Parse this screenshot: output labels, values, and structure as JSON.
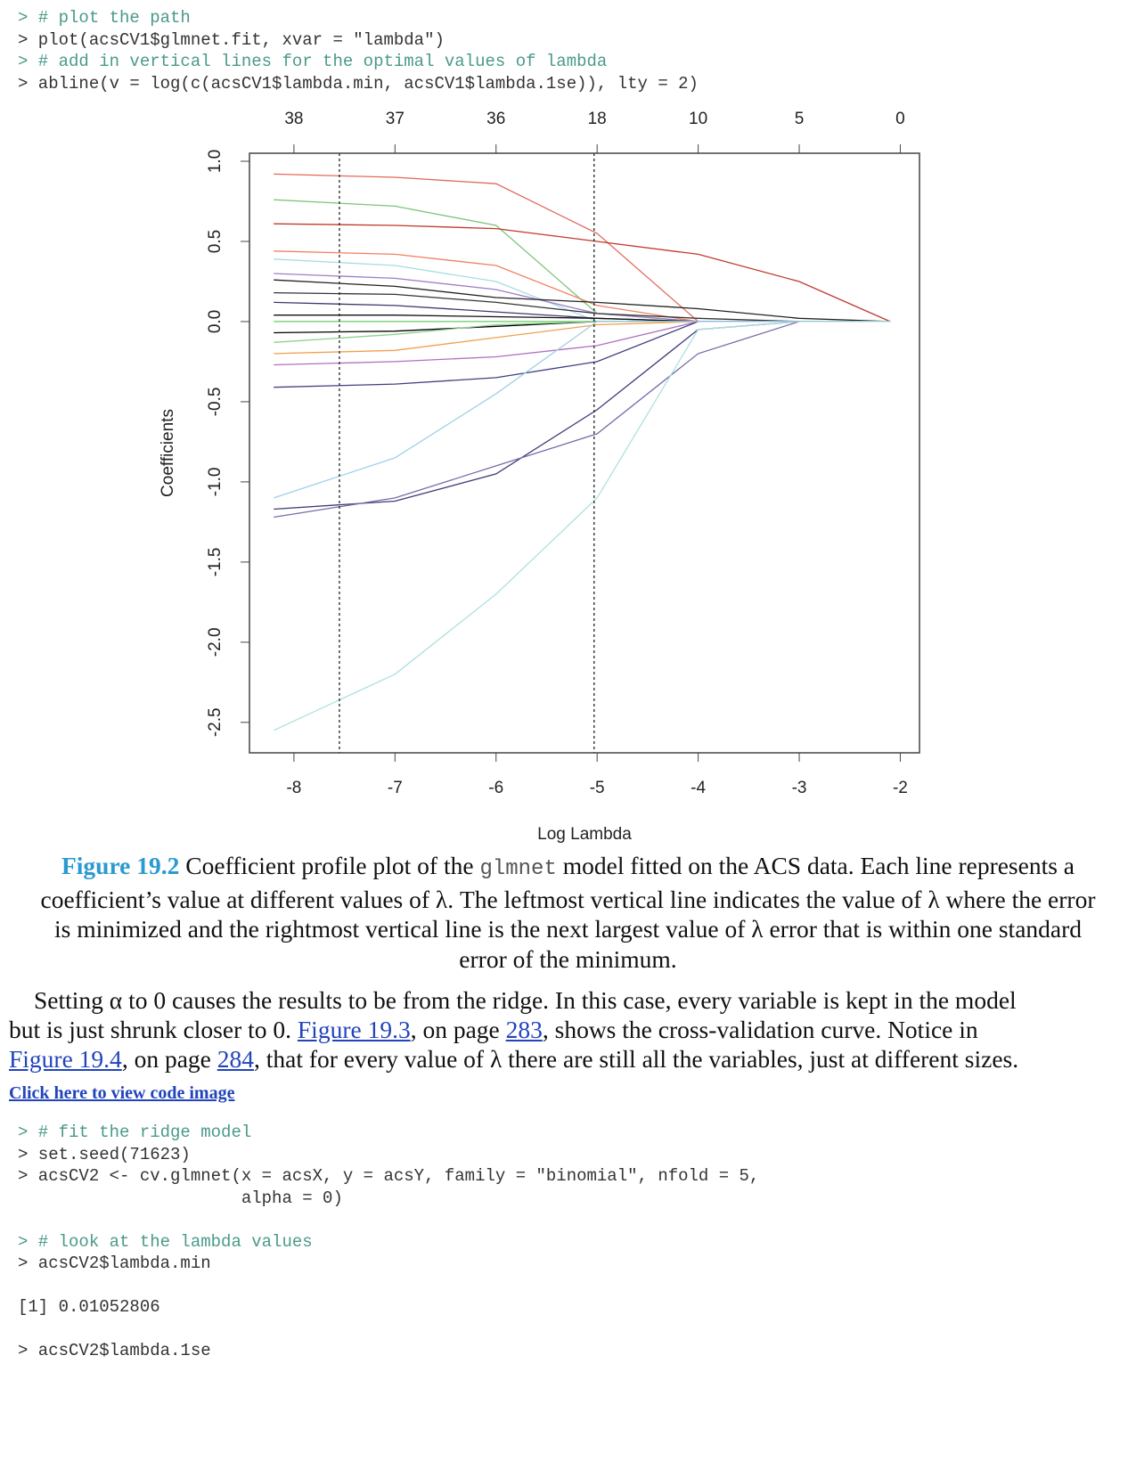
{
  "code_top": [
    {
      "text": "> # plot the path",
      "comment": true
    },
    {
      "text": "> plot(acsCV1$glmnet.fit, xvar = \"lambda\")",
      "comment": false
    },
    {
      "text": "> # add in vertical lines for the optimal values of lambda",
      "comment": true
    },
    {
      "text": "> abline(v = log(c(acsCV1$lambda.min, acsCV1$lambda.1se)), lty = 2)",
      "comment": false
    }
  ],
  "chart_data": {
    "type": "line",
    "xlabel": "Log Lambda",
    "ylabel": "Coefficients",
    "xlim": [
      -8.44,
      -1.81
    ],
    "ylim": [
      -2.69,
      1.05
    ],
    "xticks": [
      -8,
      -7,
      -6,
      -5,
      -4,
      -3,
      -2
    ],
    "yticks": [
      -2.5,
      -2.0,
      -1.5,
      -1.0,
      -0.5,
      0.0,
      0.5,
      1.0
    ],
    "top_ticks": [
      {
        "value": -8,
        "label": "38"
      },
      {
        "value": -7,
        "label": "37"
      },
      {
        "value": -6,
        "label": "36"
      },
      {
        "value": -5,
        "label": "18"
      },
      {
        "value": -4,
        "label": "10"
      },
      {
        "value": -3,
        "label": "5"
      },
      {
        "value": -2,
        "label": "0"
      }
    ],
    "vlines": [
      -7.55,
      -5.03
    ],
    "x": [
      -8.2,
      -7,
      -6,
      -5,
      -4,
      -3,
      -2.1
    ],
    "series": [
      {
        "color": "#e06a5a",
        "values": [
          0.92,
          0.9,
          0.86,
          0.55,
          0,
          0,
          0
        ]
      },
      {
        "color": "#7cc47c",
        "values": [
          0.76,
          0.72,
          0.6,
          0.05,
          0,
          0,
          0
        ]
      },
      {
        "color": "#c0392b",
        "values": [
          0.61,
          0.6,
          0.58,
          0.5,
          0.42,
          0.25,
          0
        ]
      },
      {
        "color": "#f08060",
        "values": [
          0.44,
          0.42,
          0.35,
          0.1,
          0,
          0,
          0
        ]
      },
      {
        "color": "#a8dce0",
        "values": [
          0.39,
          0.35,
          0.25,
          0,
          0,
          0,
          0
        ]
      },
      {
        "color": "#9b7fc8",
        "values": [
          0.3,
          0.27,
          0.2,
          0.05,
          0,
          0,
          0
        ]
      },
      {
        "color": "#222222",
        "values": [
          0.26,
          0.22,
          0.15,
          0.12,
          0.08,
          0.02,
          0
        ]
      },
      {
        "color": "#333333",
        "values": [
          0.18,
          0.17,
          0.12,
          0.05,
          0.02,
          0,
          0
        ]
      },
      {
        "color": "#3a3a6a",
        "values": [
          0.12,
          0.1,
          0.06,
          0.02,
          0,
          0,
          0
        ]
      },
      {
        "color": "#111111",
        "values": [
          0.04,
          0.04,
          0.03,
          0.02,
          0,
          0,
          0
        ]
      },
      {
        "color": "#66cc66",
        "values": [
          0,
          0,
          0,
          0,
          0,
          0,
          0
        ]
      },
      {
        "color": "#000000",
        "values": [
          -0.07,
          -0.06,
          -0.03,
          0,
          0,
          0,
          0
        ]
      },
      {
        "color": "#8ed08e",
        "values": [
          -0.13,
          -0.08,
          -0.02,
          0,
          0,
          0,
          0
        ]
      },
      {
        "color": "#f0a050",
        "values": [
          -0.2,
          -0.18,
          -0.1,
          -0.02,
          0,
          0,
          0
        ]
      },
      {
        "color": "#b070c0",
        "values": [
          -0.27,
          -0.25,
          -0.22,
          -0.15,
          0,
          0,
          0
        ]
      },
      {
        "color": "#404080",
        "values": [
          -0.41,
          -0.39,
          -0.35,
          -0.25,
          0,
          0,
          0
        ]
      },
      {
        "color": "#9fd0e8",
        "values": [
          -1.1,
          -0.85,
          -0.45,
          0,
          0,
          0,
          0
        ]
      },
      {
        "color": "#3c3c78",
        "values": [
          -1.17,
          -1.12,
          -0.95,
          -0.55,
          -0.05,
          0,
          0
        ]
      },
      {
        "color": "#7a6aa8",
        "values": [
          -1.22,
          -1.1,
          -0.9,
          -0.7,
          -0.2,
          0,
          0
        ]
      },
      {
        "color": "#aee0e0",
        "values": [
          -2.55,
          -2.2,
          -1.7,
          -1.1,
          -0.05,
          0,
          0
        ]
      }
    ]
  },
  "caption": {
    "label": "Figure 19.2",
    "segments": [
      {
        "text": " Coefficient profile plot of the ",
        "code": false
      },
      {
        "text": "glmnet",
        "code": true
      },
      {
        "text": " model fitted on the ACS data. Each line represents a coefficient’s value at different values of λ. The leftmost vertical line indicates the value of λ where the error is minimized and the rightmost vertical line is the next largest value of λ error that is within one standard error of the minimum.",
        "code": false
      }
    ]
  },
  "paragraph": [
    {
      "text": "Setting α to 0 causes the results to be from the ridge. In this case, every variable is kept in the model but is just shrunk closer to 0. ",
      "link": false
    },
    {
      "text": "Figure 19.3",
      "link": true
    },
    {
      "text": ", on page ",
      "link": false
    },
    {
      "text": "283",
      "link": true
    },
    {
      "text": ", shows the cross-validation curve. Notice in ",
      "link": false
    },
    {
      "text": "Figure 19.4",
      "link": true
    },
    {
      "text": ", on page ",
      "link": false
    },
    {
      "text": "284",
      "link": true
    },
    {
      "text": ", that for every value of λ there are still all the variables, just at different sizes.",
      "link": false
    }
  ],
  "code_link": "Click here to view code image",
  "code_bottom": [
    {
      "text": "> # fit the ridge model",
      "comment": true
    },
    {
      "text": "> set.seed(71623)",
      "comment": false
    },
    {
      "text": "> acsCV2 <- cv.glmnet(x = acsX, y = acsY, family = \"binomial\", nfold = 5,",
      "comment": false
    },
    {
      "text": "                      alpha = 0)",
      "comment": false
    },
    {
      "text": "",
      "comment": false
    },
    {
      "text": "> # look at the lambda values",
      "comment": true
    },
    {
      "text": "> acsCV2$lambda.min",
      "comment": false
    },
    {
      "text": "",
      "comment": false
    },
    {
      "text": "[1] 0.01052806",
      "comment": false
    },
    {
      "text": "",
      "comment": false
    },
    {
      "text": "> acsCV2$lambda.1se",
      "comment": false
    }
  ]
}
